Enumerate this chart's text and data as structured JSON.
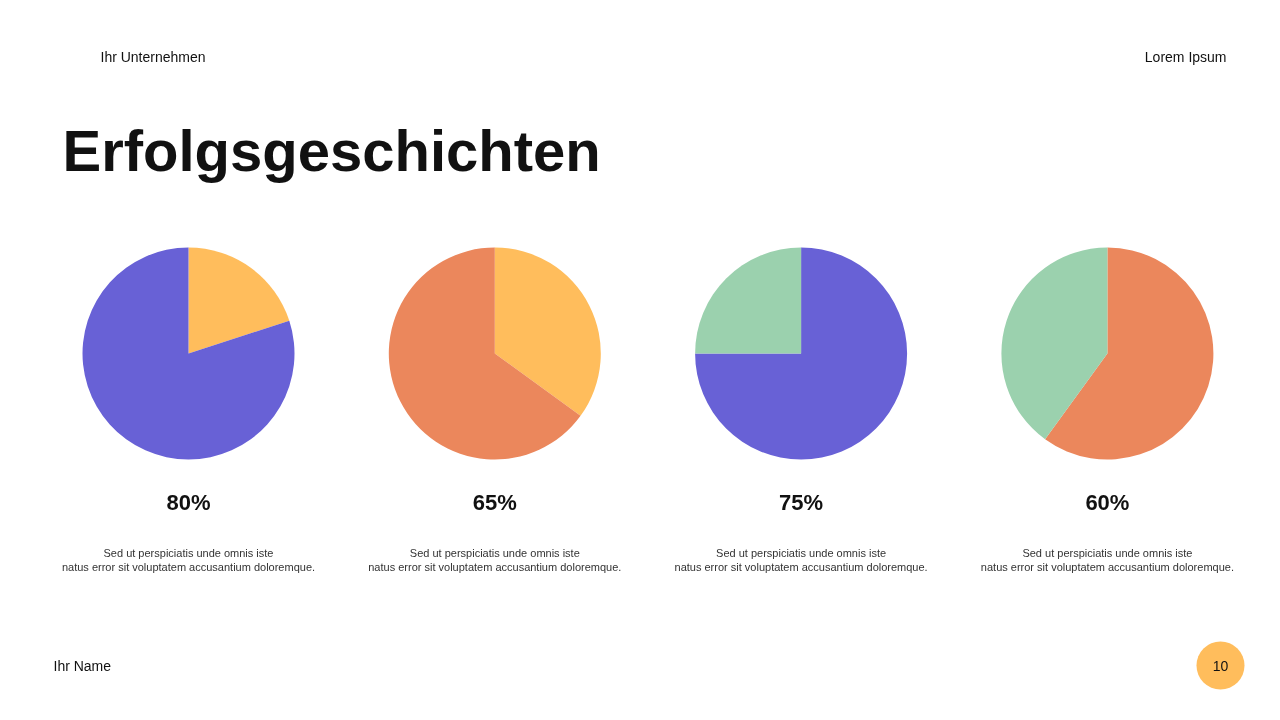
{
  "chart_data": [
    {
      "type": "other",
      "title": "Erfolgsgeschichten",
      "annotations": [
        "Ihr Unternehmen",
        "Lorem Ipsum",
        "Ihr Name",
        "10"
      ]
    },
    {
      "type": "pie",
      "categories": [
        null,
        null
      ],
      "values": [
        20,
        80
      ],
      "colors": [
        "#ffbd5c",
        "#6861d6"
      ],
      "value_labels": [
        null,
        "80%"
      ],
      "annotations": [
        "Sed ut perspiciatis unde omnis iste natus error sit voluptatem accusantium doloremque."
      ]
    },
    {
      "type": "pie",
      "categories": [
        null,
        null
      ],
      "values": [
        35,
        65
      ],
      "colors": [
        "#ffbd5c",
        "#eb875c"
      ],
      "value_labels": [
        null,
        "65%"
      ],
      "annotations": [
        "Sed ut perspiciatis unde omnis iste natus error sit voluptatem accusantium doloremque."
      ]
    },
    {
      "type": "pie",
      "categories": [
        null,
        null
      ],
      "values": [
        75,
        25
      ],
      "colors": [
        "#6861d6",
        "#9bd1ae"
      ],
      "value_labels": [
        "75%",
        null
      ],
      "annotations": [
        "Sed ut perspiciatis unde omnis iste natus error sit voluptatem accusantium doloremque."
      ]
    },
    {
      "type": "pie",
      "categories": [
        null,
        null
      ],
      "values": [
        60,
        40
      ],
      "colors": [
        "#eb875c",
        "#9bd1ae"
      ],
      "value_labels": [
        "60%",
        null
      ],
      "annotations": [
        "Sed ut perspiciatis unde omnis iste natus error sit voluptatem accusantium doloremque."
      ]
    }
  ]
}
